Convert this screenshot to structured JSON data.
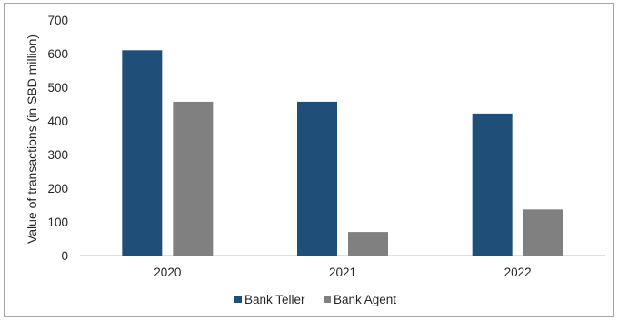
{
  "chart_data": {
    "type": "bar",
    "title": "",
    "xlabel": "",
    "ylabel": "Value of transactions (in SBD million)",
    "categories": [
      "2020",
      "2021",
      "2022"
    ],
    "series": [
      {
        "name": "Bank Teller",
        "values": [
          610,
          457,
          422
        ],
        "color": "#1f4e79"
      },
      {
        "name": "Bank Agent",
        "values": [
          457,
          70,
          137
        ],
        "color": "#808080"
      }
    ],
    "ylim": [
      0,
      700
    ],
    "yticks": [
      "0",
      "100",
      "200",
      "300",
      "400",
      "500",
      "600",
      "700"
    ],
    "grid": false,
    "legend_position": "bottom-center"
  }
}
